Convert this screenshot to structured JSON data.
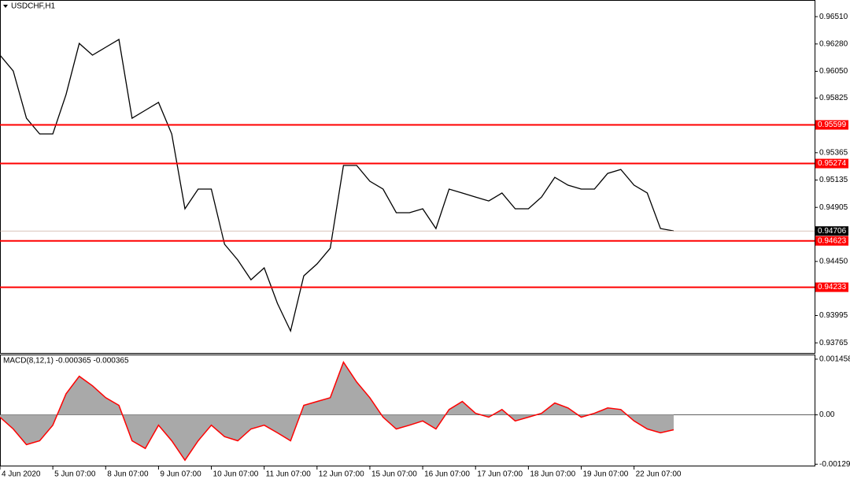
{
  "chart_data": [
    {
      "type": "line",
      "title": "USDCHF,H1",
      "color": "#000000",
      "x": [
        0,
        6,
        12,
        18,
        24,
        30,
        36,
        42,
        48,
        54,
        60,
        66,
        72,
        78,
        84,
        90,
        96,
        102,
        108,
        114,
        120,
        126,
        132,
        138,
        144,
        150,
        156,
        162,
        168,
        174,
        180,
        186,
        192,
        198,
        204,
        210,
        216,
        222,
        228,
        234,
        240,
        246,
        252,
        258,
        264,
        270,
        276,
        282,
        288,
        294,
        300,
        306
      ],
      "values": [
        0.96186,
        0.96053,
        0.95655,
        0.95523,
        0.95523,
        0.95854,
        0.96285,
        0.96186,
        0.96252,
        0.96318,
        0.95655,
        0.95722,
        0.95788,
        0.95523,
        0.94893,
        0.95059,
        0.95059,
        0.94595,
        0.94462,
        0.94296,
        0.94396,
        0.94097,
        0.93865,
        0.94329,
        0.94429,
        0.94561,
        0.95258,
        0.95258,
        0.95125,
        0.95059,
        0.9486,
        0.9486,
        0.94893,
        0.94727,
        0.95059,
        0.95026,
        0.94992,
        0.94959,
        0.95026,
        0.94893,
        0.94893,
        0.94992,
        0.95158,
        0.95092,
        0.95059,
        0.95059,
        0.95191,
        0.95224,
        0.95092,
        0.95026,
        0.94727,
        0.94707
      ],
      "xlim": [
        0,
        370
      ],
      "ylim": [
        0.9368,
        0.9665
      ],
      "yticks": [
        {
          "value": 0.9651,
          "label": "0.96510"
        },
        {
          "value": 0.9628,
          "label": "0.96280"
        },
        {
          "value": 0.9605,
          "label": "0.96050"
        },
        0.95825,
        0.95365,
        0.95135,
        0.94905,
        {
          "value": 0.9445,
          "label": "0.94450"
        },
        0.93995,
        0.93765
      ],
      "levels": [
        0.95599,
        0.95274,
        0.94623,
        0.94233
      ],
      "level_color": "#ff0000",
      "current_price": 0.94706
    },
    {
      "type": "area",
      "title": "MACD(8,12,1) -0.000365 -0.000365",
      "color": "#ff0000",
      "fill": "#a9a9a9",
      "x": [
        0,
        6,
        12,
        18,
        24,
        30,
        36,
        42,
        48,
        54,
        60,
        66,
        72,
        78,
        84,
        90,
        96,
        102,
        108,
        114,
        120,
        126,
        132,
        138,
        144,
        150,
        156,
        162,
        168,
        174,
        180,
        186,
        192,
        198,
        204,
        210,
        216,
        222,
        228,
        234,
        240,
        246,
        252,
        258,
        264,
        270,
        276,
        282,
        288,
        294,
        300,
        306
      ],
      "values": [
        -6e-05,
        -0.00037,
        -0.00078,
        -0.00068,
        -0.00027,
        0.00055,
        0.00101,
        0.00076,
        0.00045,
        0.00025,
        -0.00068,
        -0.00088,
        -0.00027,
        -0.00068,
        -0.00119,
        -0.00068,
        -0.00027,
        -0.00057,
        -0.00068,
        -0.00037,
        -0.00027,
        -0.00047,
        -0.00068,
        0.00025,
        0.00035,
        0.00045,
        0.00138,
        0.00086,
        0.00045,
        -6e-05,
        -0.00037,
        -0.00027,
        -0.00016,
        -0.00037,
        0.00014,
        0.00035,
        4e-05,
        -6e-05,
        0.00014,
        -0.00016,
        -6e-05,
        4e-05,
        0.00031,
        0.00018,
        -6e-05,
        4e-05,
        0.00018,
        0.00014,
        -0.00016,
        -0.00037,
        -0.00047,
        -0.00039
      ],
      "xlim": [
        0,
        370
      ],
      "ylim": [
        -0.00135,
        0.00158
      ],
      "yticks": [
        0.001458,
        {
          "value": 0,
          "label": "0.00"
        },
        -0.001293
      ],
      "xticks": [
        {
          "value": 0,
          "label": "4 Jun 2020"
        },
        {
          "value": 24,
          "label": "5 Jun 07:00"
        },
        {
          "value": 48,
          "label": "8 Jun 07:00"
        },
        {
          "value": 72,
          "label": "9 Jun 07:00"
        },
        {
          "value": 96,
          "label": "10 Jun 07:00"
        },
        {
          "value": 120,
          "label": "11 Jun 07:00"
        },
        {
          "value": 144,
          "label": "12 Jun 07:00"
        },
        {
          "value": 168,
          "label": "15 Jun 07:00"
        },
        {
          "value": 192,
          "label": "16 Jun 07:00"
        },
        {
          "value": 216,
          "label": "17 Jun 07:00"
        },
        {
          "value": 240,
          "label": "18 Jun 07:00"
        },
        {
          "value": 264,
          "label": "19 Jun 07:00"
        },
        {
          "value": 288,
          "label": "22 Jun 07:00"
        }
      ]
    }
  ]
}
